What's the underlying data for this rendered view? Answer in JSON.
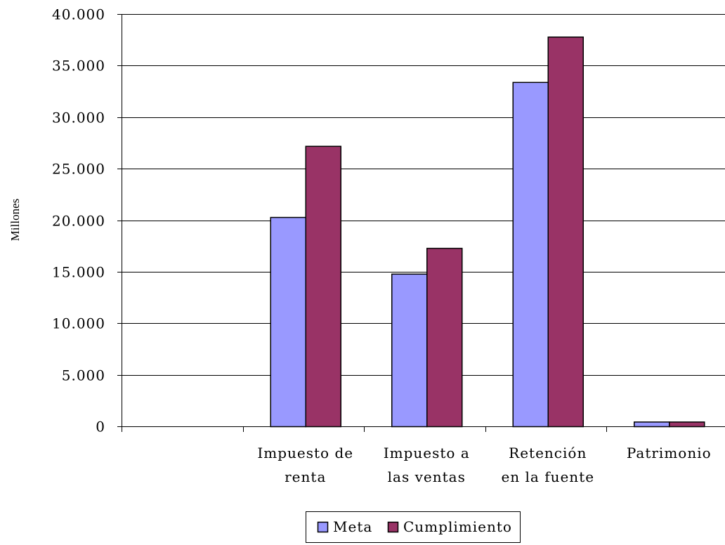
{
  "chart_data": {
    "type": "bar",
    "categories": [
      "",
      "Impuesto de renta",
      "Impuesto a las ventas",
      "Retención en la fuente",
      "Patrimonio"
    ],
    "category_lines": [
      [],
      [
        "Impuesto de",
        "renta"
      ],
      [
        "Impuesto a",
        "las ventas"
      ],
      [
        "Retención",
        "en la fuente"
      ],
      [
        "Patrimonio"
      ]
    ],
    "series": [
      {
        "name": "Meta",
        "color": "#9999ff",
        "values": [
          null,
          20300,
          14800,
          33400,
          450
        ]
      },
      {
        "name": "Cumplimiento",
        "color": "#993366",
        "values": [
          null,
          27200,
          17300,
          37800,
          450
        ]
      }
    ],
    "ylabel": "Millones",
    "ylim": [
      0,
      40000
    ],
    "yticks": [
      0,
      5000,
      10000,
      15000,
      20000,
      25000,
      30000,
      35000,
      40000
    ],
    "ytick_labels": [
      "0",
      "5.000",
      "10.000",
      "15.000",
      "20.000",
      "25.000",
      "30.000",
      "35.000",
      "40.000"
    ],
    "grid": true,
    "legend_position": "bottom"
  }
}
